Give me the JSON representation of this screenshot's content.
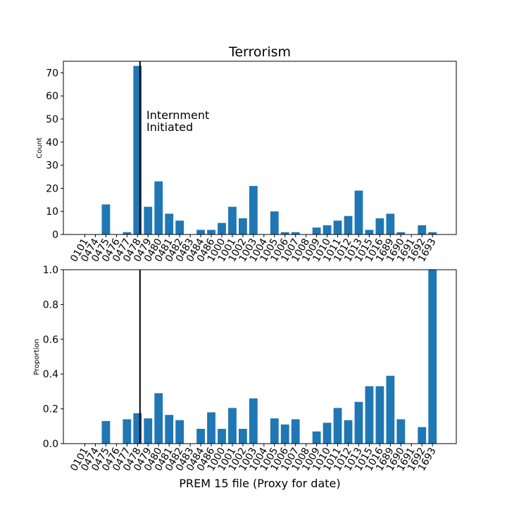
{
  "chart_data": [
    {
      "type": "bar",
      "title": "Terrorism",
      "ylabel": "Count",
      "xlabel": "",
      "ylim": [
        0,
        75
      ],
      "yticks": [
        0,
        10,
        20,
        30,
        40,
        50,
        60,
        70
      ],
      "categories": [
        "0101",
        "0474",
        "0475",
        "0476",
        "0477",
        "0478",
        "0479",
        "0480",
        "0481",
        "0482",
        "0483",
        "0484",
        "0486",
        "1000",
        "1001",
        "1002",
        "1003",
        "1004",
        "1005",
        "1006",
        "1007",
        "1008",
        "1009",
        "1010",
        "1011",
        "1012",
        "1013",
        "1015",
        "1016",
        "1689",
        "1690",
        "1691",
        "1692",
        "1693"
      ],
      "values": [
        0,
        0,
        13,
        0,
        1,
        73,
        12,
        23,
        9,
        6,
        0,
        2,
        2,
        5,
        12,
        7,
        21,
        0,
        10,
        1,
        1,
        0,
        3,
        4,
        6,
        8,
        19,
        2,
        7,
        9,
        1,
        0,
        4,
        1
      ],
      "bar_color": "#1f77b4",
      "vline_at": "0478",
      "annotation": [
        "Internment",
        "Initiated"
      ]
    },
    {
      "type": "bar",
      "title": "",
      "ylabel": "Proportion",
      "xlabel": "PREM 15 file (Proxy for date)",
      "ylim": [
        0,
        1.0
      ],
      "yticks": [
        "0.0",
        "0.2",
        "0.4",
        "0.6",
        "0.8",
        "1.0"
      ],
      "categories": [
        "0101",
        "0474",
        "0475",
        "0476",
        "0477",
        "0478",
        "0479",
        "0480",
        "0481",
        "0482",
        "0483",
        "0484",
        "0486",
        "1000",
        "1001",
        "1002",
        "1003",
        "1004",
        "1005",
        "1006",
        "1007",
        "1008",
        "1009",
        "1010",
        "1011",
        "1012",
        "1013",
        "1015",
        "1016",
        "1689",
        "1690",
        "1691",
        "1692",
        "1693"
      ],
      "values": [
        0,
        0,
        0.13,
        0,
        0.14,
        0.175,
        0.145,
        0.29,
        0.165,
        0.135,
        0,
        0.085,
        0.18,
        0.085,
        0.205,
        0.085,
        0.26,
        0,
        0.145,
        0.11,
        0.14,
        0,
        0.07,
        0.12,
        0.205,
        0.135,
        0.24,
        0.33,
        0.33,
        0.39,
        0.14,
        0,
        0.095,
        1.0
      ],
      "bar_color": "#1f77b4",
      "vline_at": "0478"
    }
  ]
}
